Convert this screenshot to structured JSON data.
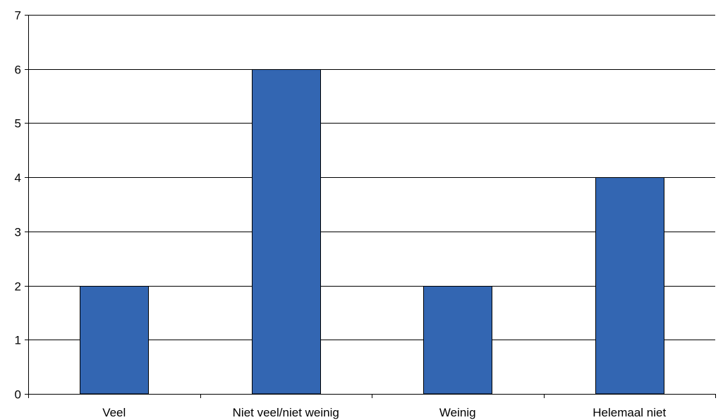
{
  "chart_data": {
    "type": "bar",
    "title": "",
    "xlabel": "",
    "ylabel": "",
    "categories": [
      "Veel",
      "Niet veel/niet weinig",
      "Weinig",
      "Helemaal niet"
    ],
    "values": [
      2,
      6,
      2,
      4
    ],
    "ylim": [
      0,
      7
    ],
    "yticks": [
      0,
      1,
      2,
      3,
      4,
      5,
      6,
      7
    ],
    "grid": true,
    "legend": "none",
    "colors": {
      "bar": "#3366b2",
      "grid": "#000000",
      "axis": "#000000"
    }
  }
}
